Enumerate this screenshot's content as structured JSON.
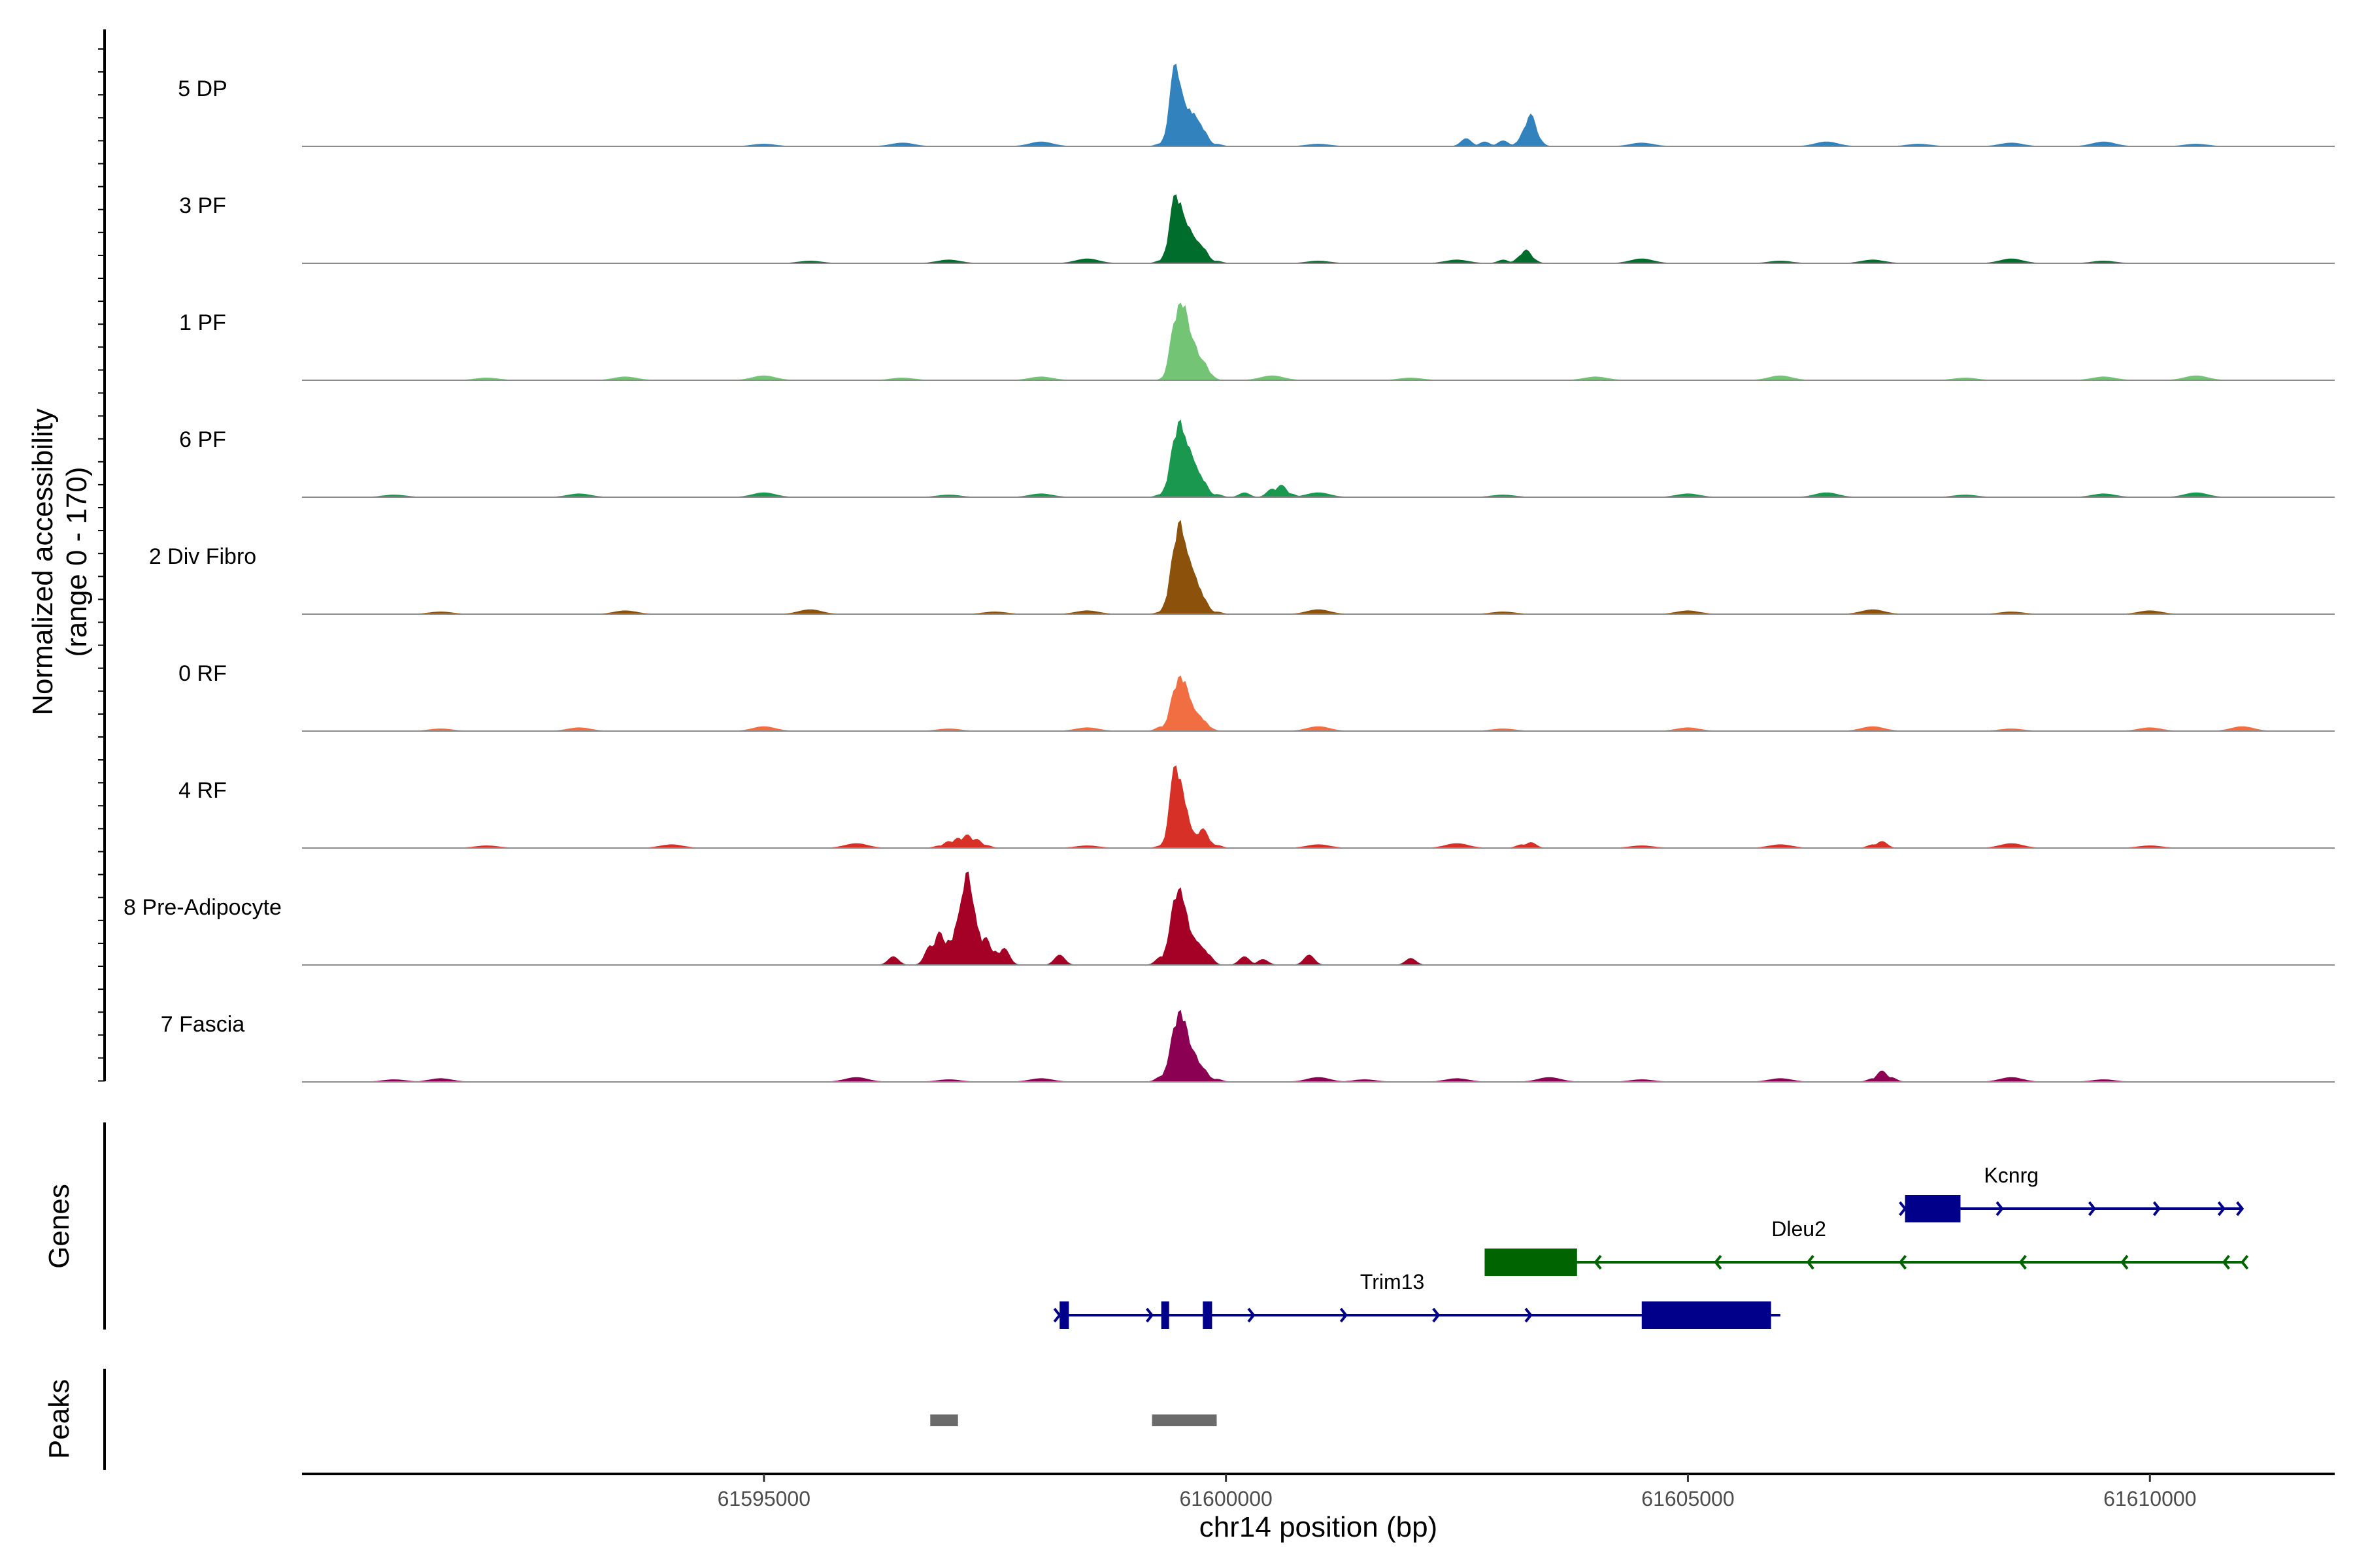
{
  "chart_data": {
    "type": "area",
    "title": "",
    "ylabel": "Normalized accessibility",
    "ylabel_range": "(range 0 - 170)",
    "xlabel": "chr14 position (bp)",
    "xlim": [
      61590000,
      61612000
    ],
    "ylim": [
      0,
      170
    ],
    "xticks": [
      61595000,
      61600000,
      61605000,
      61610000
    ],
    "xtick_labels": [
      "61595000",
      "61600000",
      "61605000",
      "61610000"
    ],
    "series": [
      {
        "name": "5 DP",
        "color": "#3182bd",
        "x": [
          61599300,
          61599400,
          61599450,
          61599500,
          61599550,
          61599600,
          61599650,
          61599700,
          61599750,
          61599800,
          61599900,
          61602600,
          61602800,
          61603000,
          61603200,
          61603250,
          61603300,
          61603350
        ],
        "y": [
          5,
          40,
          150,
          110,
          78,
          68,
          60,
          45,
          30,
          10,
          4,
          14,
          8,
          10,
          12,
          35,
          58,
          22
        ],
        "noise": [
          61595000,
          61596500,
          61598000,
          61601000,
          61604500,
          61606500,
          61607500,
          61608500,
          61609500,
          61610500
        ]
      },
      {
        "name": "3 PF",
        "color": "#006d2c",
        "x": [
          61599300,
          61599400,
          61599450,
          61599500,
          61599550,
          61599600,
          61599650,
          61599700,
          61599750,
          61599800,
          61599900,
          61603000,
          61603200,
          61603250,
          61603300
        ],
        "y": [
          5,
          40,
          125,
          110,
          80,
          65,
          48,
          38,
          28,
          10,
          4,
          6,
          14,
          24,
          10
        ],
        "noise": [
          61595500,
          61597000,
          61598500,
          61601000,
          61602500,
          61604500,
          61606000,
          61607000,
          61608500,
          61609500
        ]
      },
      {
        "name": "1 PF",
        "color": "#74c476",
        "x": [
          61599400,
          61599450,
          61599500,
          61599550,
          61599600,
          61599650,
          61599700,
          61599750,
          61599800
        ],
        "y": [
          20,
          105,
          140,
          135,
          90,
          70,
          45,
          35,
          15
        ],
        "noise": [
          61592000,
          61593500,
          61595000,
          61596500,
          61598000,
          61600500,
          61602000,
          61604000,
          61606000,
          61608000,
          61609500,
          61610500
        ]
      },
      {
        "name": "6 PF",
        "color": "#1a9850",
        "x": [
          61599300,
          61599400,
          61599450,
          61599500,
          61599550,
          61599600,
          61599650,
          61599700,
          61599750,
          61599800,
          61599900,
          61600200,
          61600500,
          61600600,
          61600700
        ],
        "y": [
          5,
          35,
          105,
          140,
          110,
          90,
          65,
          45,
          30,
          10,
          5,
          8,
          15,
          22,
          6
        ],
        "noise": [
          61591000,
          61593000,
          61595000,
          61597000,
          61598000,
          61601000,
          61603000,
          61605000,
          61606500,
          61608000,
          61609500,
          61610500
        ]
      },
      {
        "name": "2 Div Fibro",
        "color": "#8c510a",
        "x": [
          61599300,
          61599400,
          61599450,
          61599500,
          61599550,
          61599600,
          61599650,
          61599700,
          61599750,
          61599800,
          61599900
        ],
        "y": [
          4,
          40,
          120,
          170,
          130,
          100,
          75,
          50,
          30,
          10,
          4
        ],
        "noise": [
          61591500,
          61593500,
          61595500,
          61597500,
          61598500,
          61601000,
          61603000,
          61605000,
          61607000,
          61608500,
          61610000
        ]
      },
      {
        "name": "0 RF",
        "color": "#f16e43",
        "x": [
          61599300,
          61599400,
          61599450,
          61599500,
          61599550,
          61599600,
          61599650,
          61599700,
          61599750,
          61599800
        ],
        "y": [
          8,
          25,
          75,
          100,
          90,
          60,
          40,
          30,
          20,
          8
        ],
        "noise": [
          61591500,
          61593000,
          61595000,
          61597000,
          61598500,
          61601000,
          61603000,
          61605000,
          61607000,
          61608500,
          61610000,
          61611000
        ]
      },
      {
        "name": "4 RF",
        "color": "#d73027",
        "x": [
          61599300,
          61599400,
          61599450,
          61599500,
          61599550,
          61599600,
          61599650,
          61599700,
          61599750,
          61599800,
          61599900,
          61596900,
          61597000,
          61597100,
          61597200,
          61597300,
          61597400,
          61603200,
          61603300,
          61607000,
          61607100
        ],
        "y": [
          4,
          35,
          150,
          125,
          80,
          40,
          28,
          25,
          35,
          15,
          5,
          4,
          12,
          18,
          24,
          16,
          5,
          6,
          10,
          6,
          12
        ],
        "noise": [
          61592000,
          61594000,
          61596000,
          61598500,
          61601000,
          61602500,
          61604500,
          61606000,
          61608500,
          61610000
        ]
      },
      {
        "name": "8 Pre-Adipocyte",
        "color": "#a50026",
        "x": [
          61596400,
          61596800,
          61596900,
          61597000,
          61597100,
          61597150,
          61597200,
          61597250,
          61597300,
          61597400,
          61597500,
          61597600,
          61598200,
          61599300,
          61599400,
          61599450,
          61599500,
          61599550,
          61599600,
          61599650,
          61599700,
          61599750,
          61599800,
          61600200,
          61600400,
          61600900,
          61602000
        ],
        "y": [
          15,
          35,
          60,
          45,
          80,
          120,
          170,
          115,
          70,
          50,
          25,
          30,
          18,
          15,
          50,
          120,
          140,
          105,
          65,
          50,
          40,
          30,
          20,
          15,
          10,
          18,
          12
        ],
        "noise": []
      },
      {
        "name": "7 Fascia",
        "color": "#8b0052",
        "x": [
          61599300,
          61599400,
          61599450,
          61599500,
          61599550,
          61599600,
          61599650,
          61599700,
          61599750,
          61599800,
          61599900,
          61607000,
          61607100,
          61607200
        ],
        "y": [
          10,
          40,
          100,
          130,
          110,
          70,
          55,
          35,
          25,
          10,
          5,
          6,
          20,
          8
        ],
        "noise": [
          61591000,
          61591500,
          61596000,
          61597000,
          61598000,
          61601000,
          61601500,
          61602500,
          61603500,
          61604500,
          61606000,
          61608500,
          61609500
        ]
      }
    ],
    "genes": {
      "label": "Genes",
      "items": [
        {
          "name": "Kcnrg",
          "strand": "+",
          "color": "#00008b",
          "start": 61607350,
          "end": 61611000,
          "exons": [
            [
              61607350,
              61607950
            ]
          ],
          "arrows": [
            61607350,
            61608400,
            61609400,
            61610100,
            61610800,
            61611000
          ]
        },
        {
          "name": "Dleu2",
          "strand": "-",
          "color": "#006400",
          "start": 61602800,
          "end": 61611000,
          "exons": [
            [
              61602800,
              61603800
            ]
          ],
          "arrows": [
            61604000,
            61605300,
            61606300,
            61607300,
            61608600,
            61609700,
            61610800,
            61611000
          ]
        },
        {
          "name": "Trim13",
          "strand": "+",
          "color": "#00008b",
          "start": 61598200,
          "end": 61606000,
          "exons": [
            [
              61598200,
              61598300
            ],
            [
              61599300,
              61599380
            ],
            [
              61599750,
              61599850
            ],
            [
              61604500,
              61605900
            ]
          ],
          "arrows": [
            61598200,
            61599200,
            61600300,
            61601300,
            61602300,
            61603300
          ]
        }
      ]
    },
    "peaks": {
      "label": "Peaks",
      "color": "#6b6b6b",
      "regions": [
        [
          61596800,
          61597100
        ],
        [
          61599200,
          61599900
        ]
      ]
    }
  }
}
